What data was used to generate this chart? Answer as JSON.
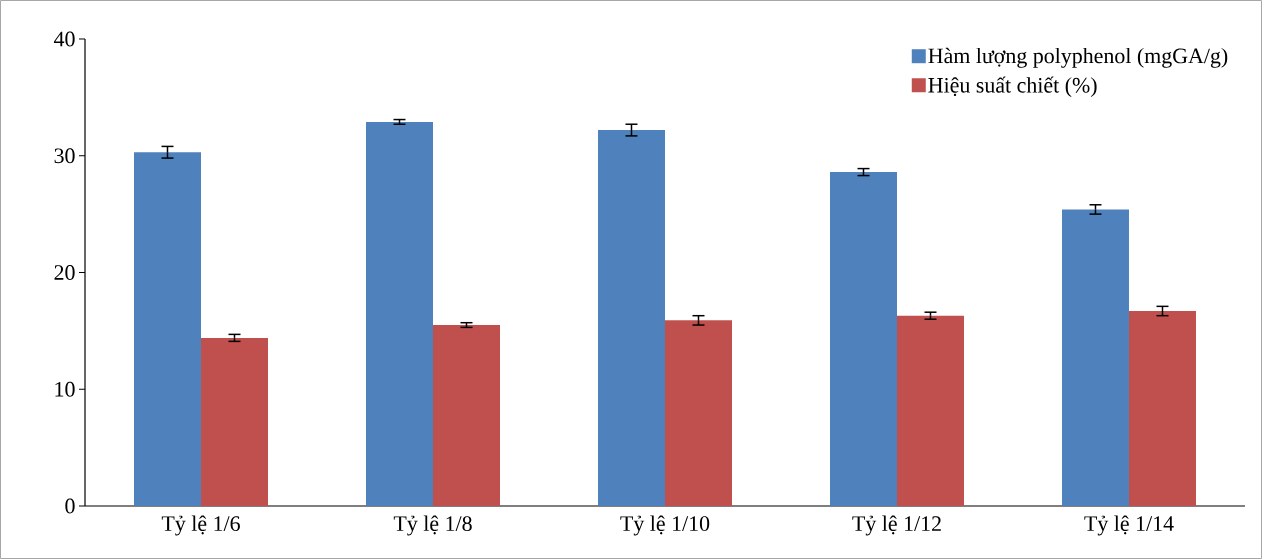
{
  "chart_data": {
    "type": "bar",
    "categories": [
      "Tỷ lệ 1/6",
      "Tỷ lệ 1/8",
      "Tỷ lệ 1/10",
      "Tỷ lệ 1/12",
      "Tỷ lệ 1/14"
    ],
    "series": [
      {
        "name": "Hàm lượng polyphenol (mgGA/g)",
        "color": "#4f81bd",
        "values": [
          30.3,
          32.9,
          32.2,
          28.6,
          25.4
        ],
        "errors": [
          0.5,
          0.2,
          0.5,
          0.3,
          0.4
        ]
      },
      {
        "name": "Hiệu suất chiết (%)",
        "color": "#c0504d",
        "values": [
          14.4,
          15.5,
          15.9,
          16.3,
          16.7
        ],
        "errors": [
          0.3,
          0.2,
          0.4,
          0.3,
          0.4
        ]
      }
    ],
    "ylim": [
      0,
      40
    ],
    "yticks": [
      0,
      10,
      20,
      30,
      40
    ],
    "grid": false,
    "legend": "top right"
  }
}
